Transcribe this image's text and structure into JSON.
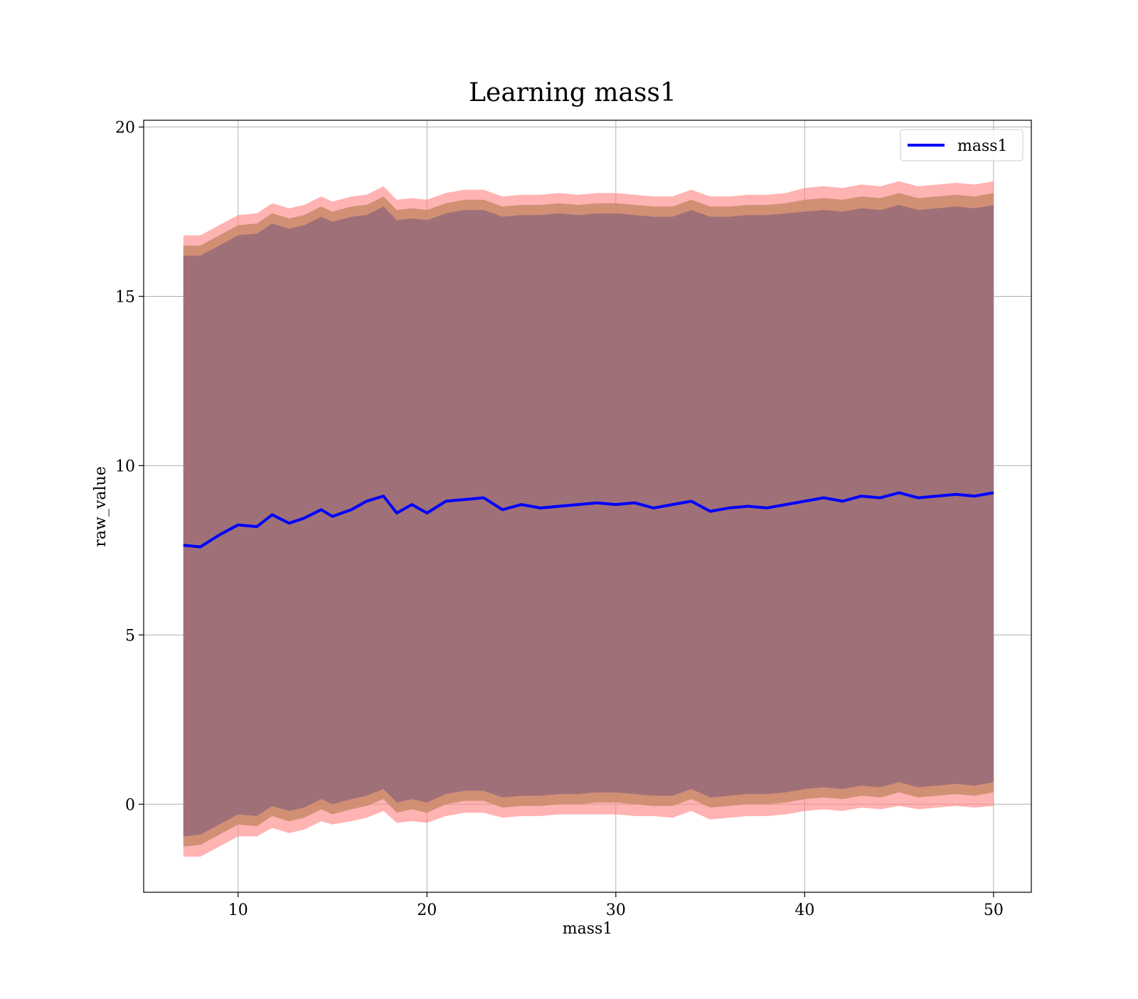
{
  "chart_data": {
    "type": "area",
    "title": "Learning mass1",
    "xlabel": "mass1",
    "ylabel": "raw_value",
    "xlim": [
      5,
      52
    ],
    "ylim": [
      -2.6,
      20.2
    ],
    "xticks": [
      10,
      20,
      30,
      40,
      50
    ],
    "yticks": [
      0,
      5,
      10,
      15,
      20
    ],
    "grid": true,
    "legend_position": "top-right",
    "colors": {
      "line": "#0000ff",
      "band_outer": "#ff8080",
      "band_middle": "#c98a68",
      "band_inner": "#a07078",
      "grid": "#b0b0b0"
    },
    "series": [
      {
        "name": "mass1",
        "x": [
          7.1,
          8,
          9,
          10,
          11,
          11.8,
          12.7,
          13.5,
          14.4,
          15,
          16,
          16.8,
          17.7,
          18.4,
          19.2,
          20,
          21,
          22,
          23,
          24,
          25,
          26,
          27,
          28,
          29,
          30,
          31,
          32,
          33,
          34,
          35,
          36,
          37,
          38,
          39,
          40,
          41,
          42,
          43,
          44,
          45,
          46,
          47,
          48,
          49,
          50
        ],
        "y": [
          7.65,
          7.6,
          7.95,
          8.25,
          8.2,
          8.55,
          8.3,
          8.45,
          8.7,
          8.5,
          8.7,
          8.95,
          9.1,
          8.6,
          8.85,
          8.6,
          8.95,
          9.0,
          9.05,
          8.7,
          8.85,
          8.75,
          8.8,
          8.85,
          8.9,
          8.85,
          8.9,
          8.75,
          8.85,
          8.95,
          8.65,
          8.75,
          8.8,
          8.75,
          8.85,
          8.95,
          9.05,
          8.95,
          9.1,
          9.05,
          9.2,
          9.05,
          9.1,
          9.15,
          9.1,
          9.2
        ]
      }
    ],
    "bands": {
      "x": [
        7.1,
        8,
        9,
        10,
        11,
        11.8,
        12.7,
        13.5,
        14.4,
        15,
        16,
        16.8,
        17.7,
        18.4,
        19.2,
        20,
        21,
        22,
        23,
        24,
        25,
        26,
        27,
        28,
        29,
        30,
        31,
        32,
        33,
        34,
        35,
        36,
        37,
        38,
        39,
        40,
        41,
        42,
        43,
        44,
        45,
        46,
        47,
        48,
        49,
        50
      ],
      "outer_upper": [
        16.8,
        16.8,
        17.1,
        17.4,
        17.45,
        17.75,
        17.6,
        17.7,
        17.95,
        17.8,
        17.95,
        18.0,
        18.25,
        17.85,
        17.9,
        17.85,
        18.05,
        18.15,
        18.15,
        17.95,
        18.0,
        18.0,
        18.05,
        18.0,
        18.05,
        18.05,
        18.0,
        17.95,
        17.95,
        18.15,
        17.95,
        17.95,
        18.0,
        18.0,
        18.05,
        18.2,
        18.25,
        18.2,
        18.3,
        18.25,
        18.4,
        18.25,
        18.3,
        18.35,
        18.3,
        18.4
      ],
      "middle_upper": [
        16.5,
        16.5,
        16.8,
        17.1,
        17.15,
        17.45,
        17.3,
        17.4,
        17.65,
        17.5,
        17.65,
        17.7,
        17.95,
        17.55,
        17.6,
        17.55,
        17.75,
        17.85,
        17.85,
        17.65,
        17.7,
        17.7,
        17.75,
        17.7,
        17.75,
        17.75,
        17.7,
        17.65,
        17.65,
        17.85,
        17.65,
        17.65,
        17.7,
        17.7,
        17.75,
        17.85,
        17.9,
        17.85,
        17.95,
        17.9,
        18.05,
        17.9,
        17.95,
        18.0,
        17.95,
        18.05
      ],
      "inner_upper": [
        16.2,
        16.2,
        16.5,
        16.8,
        16.85,
        17.15,
        17.0,
        17.1,
        17.35,
        17.2,
        17.35,
        17.4,
        17.65,
        17.25,
        17.3,
        17.25,
        17.45,
        17.55,
        17.55,
        17.35,
        17.4,
        17.4,
        17.45,
        17.4,
        17.45,
        17.45,
        17.4,
        17.35,
        17.35,
        17.55,
        17.35,
        17.35,
        17.4,
        17.4,
        17.45,
        17.5,
        17.55,
        17.5,
        17.6,
        17.55,
        17.7,
        17.55,
        17.6,
        17.65,
        17.6,
        17.7
      ],
      "inner_lower": [
        -0.95,
        -0.9,
        -0.6,
        -0.3,
        -0.35,
        -0.05,
        -0.2,
        -0.1,
        0.15,
        0.0,
        0.15,
        0.25,
        0.45,
        0.05,
        0.15,
        0.05,
        0.3,
        0.4,
        0.4,
        0.2,
        0.25,
        0.25,
        0.3,
        0.3,
        0.35,
        0.35,
        0.3,
        0.25,
        0.25,
        0.45,
        0.2,
        0.25,
        0.3,
        0.3,
        0.35,
        0.45,
        0.5,
        0.45,
        0.55,
        0.5,
        0.65,
        0.5,
        0.55,
        0.6,
        0.55,
        0.65
      ],
      "middle_lower": [
        -1.25,
        -1.2,
        -0.9,
        -0.6,
        -0.65,
        -0.35,
        -0.5,
        -0.4,
        -0.15,
        -0.3,
        -0.15,
        -0.05,
        0.15,
        -0.25,
        -0.15,
        -0.25,
        0.0,
        0.1,
        0.1,
        -0.1,
        -0.05,
        -0.05,
        0.0,
        0.0,
        0.05,
        0.05,
        0.0,
        -0.05,
        -0.05,
        0.15,
        -0.1,
        -0.05,
        0.0,
        0.0,
        0.05,
        0.15,
        0.2,
        0.15,
        0.25,
        0.2,
        0.35,
        0.2,
        0.25,
        0.3,
        0.25,
        0.35
      ],
      "outer_lower": [
        -1.55,
        -1.55,
        -1.25,
        -0.95,
        -0.95,
        -0.7,
        -0.85,
        -0.75,
        -0.5,
        -0.6,
        -0.5,
        -0.4,
        -0.2,
        -0.55,
        -0.5,
        -0.55,
        -0.35,
        -0.25,
        -0.25,
        -0.4,
        -0.35,
        -0.35,
        -0.3,
        -0.3,
        -0.3,
        -0.3,
        -0.35,
        -0.35,
        -0.4,
        -0.2,
        -0.45,
        -0.4,
        -0.35,
        -0.35,
        -0.3,
        -0.2,
        -0.15,
        -0.2,
        -0.1,
        -0.15,
        -0.05,
        -0.15,
        -0.1,
        -0.05,
        -0.1,
        -0.05
      ]
    }
  }
}
